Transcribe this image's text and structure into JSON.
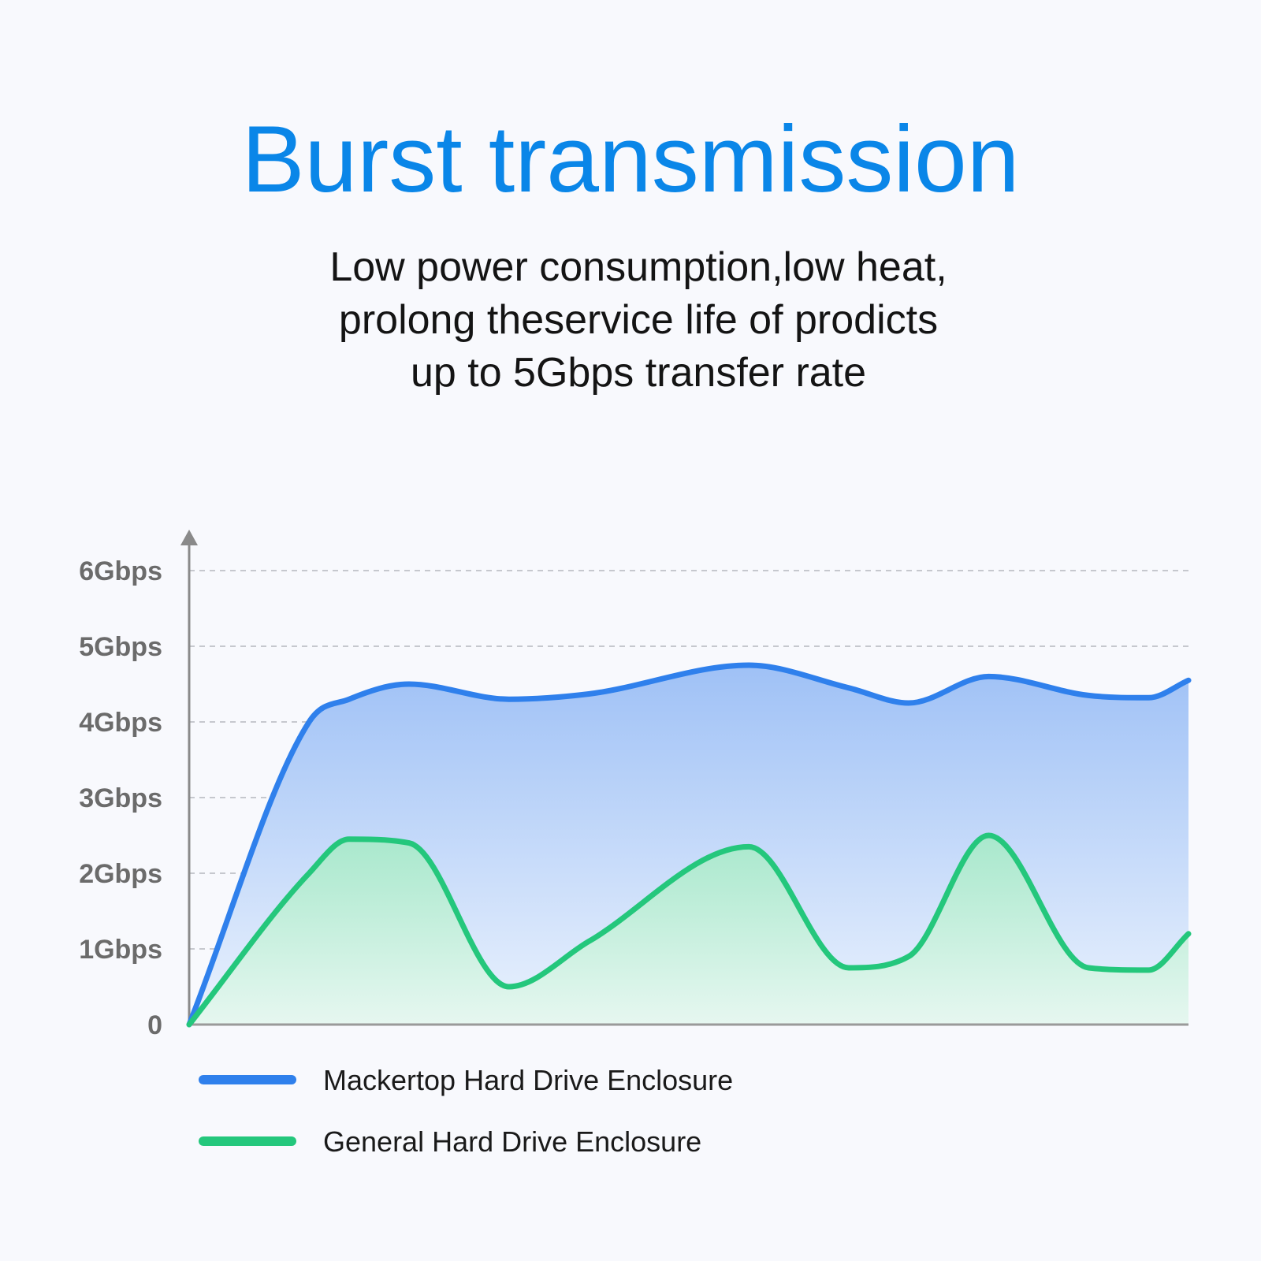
{
  "chart_data": {
    "type": "area",
    "title": "Burst transmission",
    "subtitle": [
      "Low power consumption,low heat,",
      "prolong theservice life of prodicts",
      "up to 5Gbps transfer rate"
    ],
    "xlabel": "",
    "ylabel": "",
    "ylim": [
      0,
      6
    ],
    "y_unit": "Gbps",
    "y_ticks": [
      {
        "value": 0,
        "label": "0"
      },
      {
        "value": 1,
        "label": "1Gbps"
      },
      {
        "value": 2,
        "label": "2Gbps"
      },
      {
        "value": 3,
        "label": "3Gbps"
      },
      {
        "value": 4,
        "label": "4Gbps"
      },
      {
        "value": 5,
        "label": "5Gbps"
      },
      {
        "value": 6,
        "label": "6Gbps"
      }
    ],
    "grid": true,
    "legend_position": "bottom-left",
    "x": [
      0,
      12,
      16,
      22,
      32,
      40,
      56,
      66,
      72,
      80,
      90,
      96,
      100
    ],
    "series": [
      {
        "name": "Mackertop Hard Drive Enclosure",
        "color": "#2f80ec",
        "values": [
          0,
          4.0,
          4.3,
          4.5,
          4.3,
          4.37,
          4.75,
          4.45,
          4.25,
          4.6,
          4.35,
          4.32,
          4.55
        ]
      },
      {
        "name": "General Hard Drive Enclosure",
        "color": "#24c77c",
        "values": [
          0,
          2.0,
          2.45,
          2.4,
          0.5,
          1.1,
          2.35,
          0.75,
          0.9,
          2.5,
          0.75,
          0.72,
          1.2
        ]
      }
    ]
  }
}
